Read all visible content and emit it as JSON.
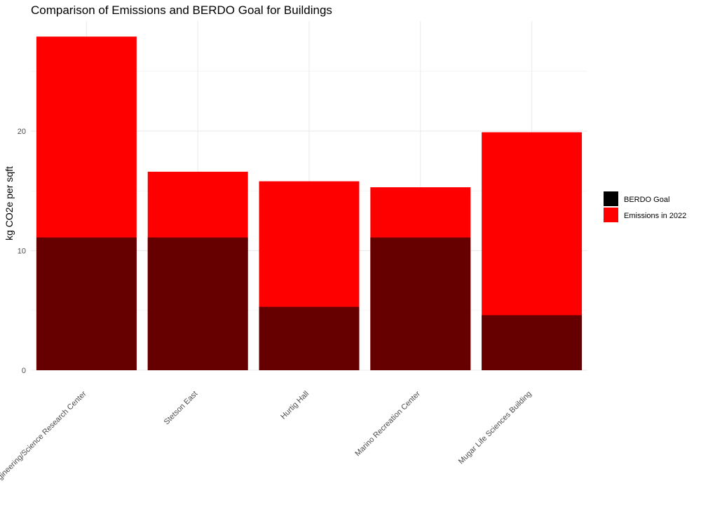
{
  "chart_data": {
    "type": "bar",
    "title": "Comparison of Emissions and BERDO Goal for Buildings",
    "xlabel": "",
    "ylabel": "kg CO2e per sqft",
    "categories": [
      "Engineering/Science Research Center",
      "Stetson East",
      "Hurtig Hall",
      "Marino Recreation Center",
      "Mugar Life Sciences Building"
    ],
    "series": [
      {
        "name": "Emissions in 2022",
        "values": [
          27.9,
          16.6,
          15.8,
          15.3,
          19.9
        ],
        "color": "#ff0000"
      },
      {
        "name": "BERDO Goal",
        "values": [
          11.1,
          11.1,
          5.3,
          11.1,
          4.6
        ],
        "color": "#000000"
      }
    ],
    "overlap_color": "#660000",
    "ylim": [
      0,
      29.2
    ],
    "yticks": [
      0,
      10,
      20
    ],
    "grid": true,
    "legend_position": "right"
  }
}
